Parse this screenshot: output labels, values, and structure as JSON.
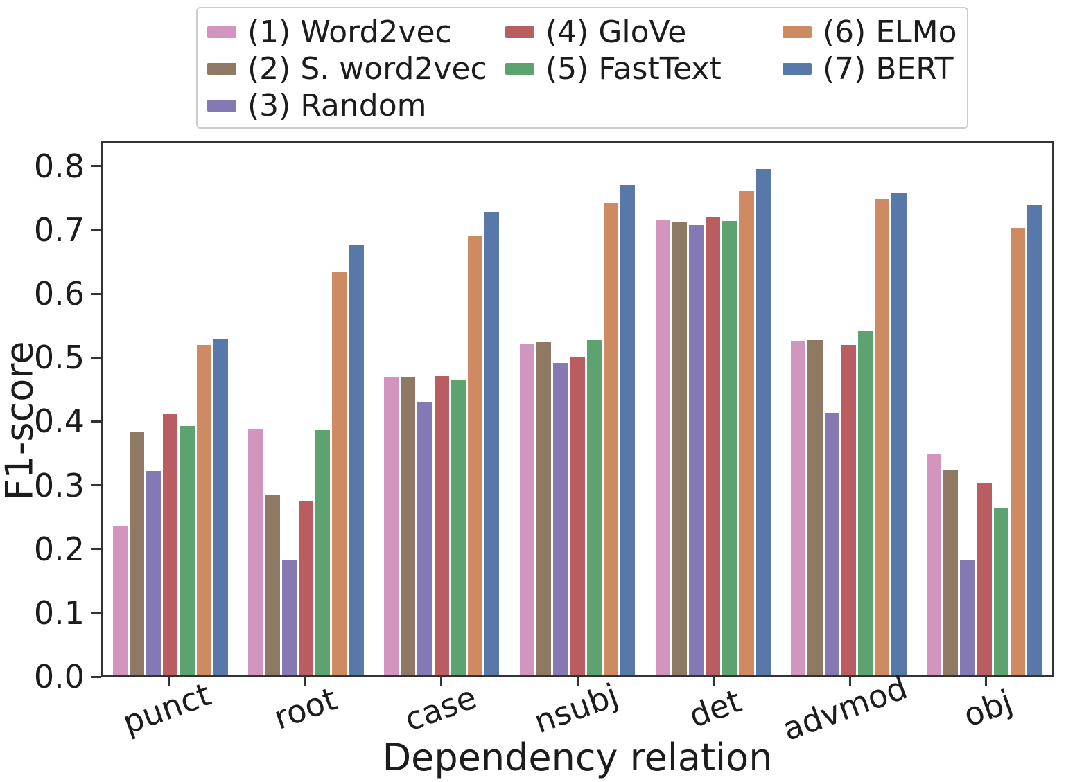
{
  "figure": {
    "background": "#ffffff",
    "spine_color": "#333333",
    "text_color": "#1c1c1c",
    "legend_border_color": "#cccccc"
  },
  "chart_data": {
    "type": "bar",
    "title": "",
    "xlabel": "Dependency relation",
    "ylabel": "F1-score",
    "ylim": [
      0,
      0.84
    ],
    "grid": false,
    "legend_position": "top",
    "legend_columns": 3,
    "legend_column_layout": [
      [
        0,
        1,
        2
      ],
      [
        3,
        4
      ],
      [
        5,
        6
      ]
    ],
    "y_tick_labels": [
      "0.0",
      "0.1",
      "0.2",
      "0.3",
      "0.4",
      "0.5",
      "0.6",
      "0.7",
      "0.8"
    ],
    "categories": [
      "punct",
      "root",
      "case",
      "nsubj",
      "det",
      "advmod",
      "obj"
    ],
    "series": [
      {
        "name": "(1) Word2vec",
        "color": "#d295be",
        "values": [
          0.234,
          0.388,
          0.47,
          0.522,
          0.718,
          0.527,
          0.349
        ]
      },
      {
        "name": "(2) S. word2vec",
        "color": "#8e7964",
        "values": [
          0.383,
          0.284,
          0.47,
          0.525,
          0.714,
          0.528,
          0.324
        ]
      },
      {
        "name": "(3) Random",
        "color": "#8579b3",
        "values": [
          0.322,
          0.18,
          0.43,
          0.492,
          0.71,
          0.413,
          0.182
        ]
      },
      {
        "name": "(4) GloVe",
        "color": "#b95d60",
        "values": [
          0.412,
          0.275,
          0.471,
          0.501,
          0.723,
          0.521,
          0.303
        ]
      },
      {
        "name": "(5) FastText",
        "color": "#5ca36f",
        "values": [
          0.393,
          0.386,
          0.465,
          0.528,
          0.716,
          0.542,
          0.263
        ]
      },
      {
        "name": "(6) ELMo",
        "color": "#ce8a62",
        "values": [
          0.521,
          0.636,
          0.692,
          0.745,
          0.763,
          0.751,
          0.706
        ]
      },
      {
        "name": "(7) BERT",
        "color": "#5878a9",
        "values": [
          0.53,
          0.679,
          0.731,
          0.773,
          0.798,
          0.761,
          0.742
        ]
      }
    ]
  }
}
